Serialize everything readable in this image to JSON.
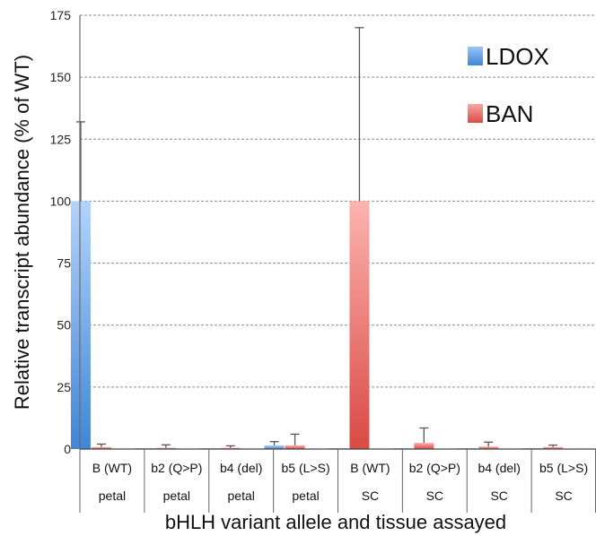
{
  "chart_data": {
    "type": "bar",
    "xlabel": "bHLH variant allele and tissue assayed",
    "ylabel": "Relative transcript abundance (% of WT)",
    "ylim": [
      0,
      175
    ],
    "yticks": [
      "0",
      "25",
      "50",
      "75",
      "100",
      "125",
      "150",
      "175"
    ],
    "grid": true,
    "legend_position": "top-right",
    "categories": [
      {
        "allele": "B   (WT)",
        "tissue": "petal"
      },
      {
        "allele": "b2 (Q>P)",
        "tissue": "petal"
      },
      {
        "allele": "b4   (del)",
        "tissue": "petal"
      },
      {
        "allele": "b5 (L>S)",
        "tissue": "petal"
      },
      {
        "allele": "B   (WT)",
        "tissue": "SC"
      },
      {
        "allele": "b2 (Q>P)",
        "tissue": "SC"
      },
      {
        "allele": "b4   (del)",
        "tissue": "SC"
      },
      {
        "allele": "b5 (L>S)",
        "tissue": "SC"
      }
    ],
    "series": [
      {
        "name": "LDOX",
        "color": "#4a8fd8",
        "values": [
          100,
          0.3,
          0.3,
          1.5,
          0.3,
          0.3,
          0.3,
          0.3
        ],
        "errors": [
          32,
          0,
          0,
          1.5,
          0,
          0,
          0,
          0
        ]
      },
      {
        "name": "BAN",
        "color": "#e05a55",
        "values": [
          0.8,
          0.5,
          0.5,
          1.5,
          100,
          2.5,
          1,
          0.8
        ],
        "errors": [
          1.2,
          1.2,
          0.8,
          4.5,
          70,
          6,
          1.8,
          0.8
        ]
      }
    ]
  }
}
